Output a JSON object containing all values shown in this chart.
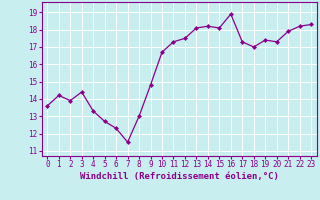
{
  "x": [
    0,
    1,
    2,
    3,
    4,
    5,
    6,
    7,
    8,
    9,
    10,
    11,
    12,
    13,
    14,
    15,
    16,
    17,
    18,
    19,
    20,
    21,
    22,
    23
  ],
  "y": [
    13.6,
    14.2,
    13.9,
    14.4,
    13.3,
    12.7,
    12.3,
    11.5,
    13.0,
    14.8,
    16.7,
    17.3,
    17.5,
    18.1,
    18.2,
    18.1,
    18.9,
    17.3,
    17.0,
    17.4,
    17.3,
    17.9,
    18.2,
    18.3
  ],
  "line_color": "#8b008b",
  "marker": "D",
  "markersize": 2.0,
  "linewidth": 0.9,
  "bg_color": "#c8eef0",
  "grid_color": "#ffffff",
  "xlabel": "Windchill (Refroidissement éolien,°C)",
  "xlabel_color": "#8b008b",
  "xlabel_fontsize": 6.5,
  "ylabel_ticks": [
    11,
    12,
    13,
    14,
    15,
    16,
    17,
    18,
    19
  ],
  "xtick_labels": [
    "0",
    "1",
    "2",
    "3",
    "4",
    "5",
    "6",
    "7",
    "8",
    "9",
    "10",
    "11",
    "12",
    "13",
    "14",
    "15",
    "16",
    "17",
    "18",
    "19",
    "20",
    "21",
    "22",
    "23"
  ],
  "ylim": [
    10.7,
    19.6
  ],
  "xlim": [
    -0.5,
    23.5
  ],
  "tick_color": "#8b008b",
  "tick_fontsize": 5.5
}
